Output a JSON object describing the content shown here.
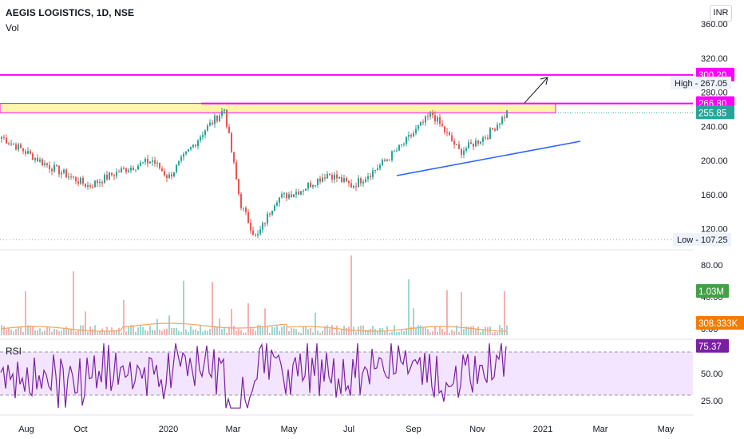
{
  "header": {
    "title": "AEGIS LOGISTICS, 1D, NSE",
    "volume_label": "Vol",
    "currency": "INR"
  },
  "colors": {
    "up": "#26a69a",
    "down": "#ef5350",
    "magenta": "#ff00ff",
    "zone_fill": "#fff59d",
    "trendline": "#2962ff",
    "volume_ma": "#f7a35c",
    "rsi_line": "#7b1fa2",
    "rsi_band": "#f3e5ff",
    "last_price_badge": "#26a69a",
    "volume_badge": "#43a047",
    "volume_ma_badge": "#f57c00",
    "rsi_badge": "#7b1fa2"
  },
  "chart_data": {
    "type": "candlestick",
    "title": "AEGIS LOGISTICS, 1D, NSE",
    "price_axis": {
      "ticks": [
        "360.00",
        "320.00",
        "280.00",
        "240.00",
        "200.00",
        "160.00",
        "120.00"
      ],
      "ylim": [
        100,
        370
      ]
    },
    "volume_axis": {
      "ticks": [
        "80.00",
        "40.00",
        "0.00"
      ]
    },
    "rsi_axis": {
      "ticks": [
        "50.00",
        "25.00"
      ],
      "bands": [
        30,
        70
      ]
    },
    "time_axis": [
      "Aug",
      "Oct",
      "2020",
      "Mar",
      "May",
      "Jul",
      "Sep",
      "Nov",
      "2021",
      "Mar",
      "May"
    ],
    "price_path": [
      [
        "Aug",
        228
      ],
      [
        "Sep",
        196
      ],
      [
        "Oct",
        170
      ],
      [
        "Nov",
        188
      ],
      [
        "Dec",
        200
      ],
      [
        "2020",
        180
      ],
      [
        "Feb",
        235
      ],
      [
        "Mar",
        260
      ],
      [
        "Mar",
        150
      ],
      [
        "Apr",
        108
      ],
      [
        "Apr",
        155
      ],
      [
        "May",
        165
      ],
      [
        "Jun",
        185
      ],
      [
        "Jul",
        170
      ],
      [
        "Aug",
        190
      ],
      [
        "Aug",
        215
      ],
      [
        "Sep",
        255
      ],
      [
        "Oct",
        210
      ],
      [
        "Nov",
        230
      ],
      [
        "Nov",
        255.85
      ]
    ],
    "levels": [
      {
        "label": "300.20",
        "value": 300.2,
        "color": "magenta"
      },
      {
        "label": "266.80",
        "value": 266.8,
        "color": "magenta"
      },
      {
        "label": "255.85",
        "value": 255.85,
        "color": "last_price_badge"
      }
    ],
    "resistance_zone": [
      255.85,
      266.8
    ],
    "high": {
      "label": "High",
      "value": "267.05"
    },
    "low": {
      "label": "Low",
      "value": "107.25"
    },
    "volume": {
      "last": "1.03M",
      "ma": "308.333K"
    },
    "rsi": {
      "label": "RSI",
      "value": "75.37"
    }
  }
}
